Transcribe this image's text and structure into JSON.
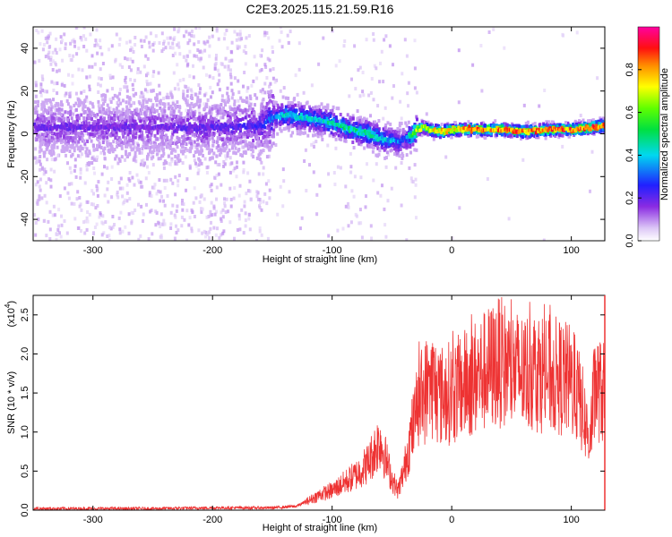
{
  "title": "C2E3.2025.115.21.59.R16",
  "colors": {
    "snr_line": "#ee3333",
    "axis": "#000000"
  },
  "chart_data": [
    {
      "type": "heatmap",
      "xlabel": "Height of straight line (km)",
      "ylabel": "Frequency (Hz)",
      "xlim": [
        -350,
        128
      ],
      "ylim": [
        -50,
        50
      ],
      "x_ticks": [
        -300,
        -200,
        -100,
        0,
        100
      ],
      "x_tick_labels": [
        "-300",
        "-200",
        "-100",
        "0",
        "100"
      ],
      "y_ticks": [
        -40,
        -20,
        0,
        20,
        40
      ],
      "y_tick_labels": [
        "-40",
        "-20",
        "0",
        "20",
        "40"
      ],
      "colorbar": {
        "label": "Normalized spectral amplitude",
        "range": [
          0,
          1
        ],
        "ticks": [
          0.0,
          0.2,
          0.4,
          0.6,
          0.8
        ],
        "tick_labels": [
          "0.0",
          "0.2",
          "0.4",
          "0.6",
          "0.8"
        ],
        "colormap": "rainbow (white → violet → blue → cyan → green → yellow → orange → red → magenta)"
      },
      "ridge": {
        "x": [
          -350,
          -300,
          -250,
          -200,
          -160,
          -150,
          -140,
          -130,
          -120,
          -110,
          -100,
          -90,
          -80,
          -70,
          -60,
          -50,
          -45,
          -40,
          -35,
          -30,
          -25,
          -20,
          -10,
          0,
          10,
          20,
          40,
          60,
          80,
          100,
          115,
          128
        ],
        "freq": [
          3,
          3,
          3,
          3,
          4,
          8,
          9,
          8,
          7,
          6,
          5,
          3,
          1,
          0,
          -2,
          -3,
          -4,
          -2,
          -1,
          2,
          3,
          2,
          1,
          2,
          2,
          2,
          2,
          1,
          2,
          2,
          3,
          4
        ],
        "amplitude": [
          0.2,
          0.2,
          0.2,
          0.22,
          0.25,
          0.35,
          0.45,
          0.45,
          0.45,
          0.45,
          0.5,
          0.5,
          0.5,
          0.5,
          0.45,
          0.4,
          0.35,
          0.3,
          0.6,
          0.7,
          0.7,
          0.75,
          0.85,
          0.85,
          0.88,
          0.9,
          0.9,
          0.9,
          0.9,
          0.9,
          0.9,
          0.9
        ]
      }
    },
    {
      "type": "line",
      "xlabel": "Height of straight line (km)",
      "ylabel": "SNR (10 * v/v)",
      "y_scale_label": "(x10",
      "y_scale_exp": "4",
      "y_scale_suffix": ")",
      "xlim": [
        -350,
        128
      ],
      "ylim": [
        0,
        2.75
      ],
      "x_ticks": [
        -300,
        -200,
        -100,
        0,
        100
      ],
      "x_tick_labels": [
        "-300",
        "-200",
        "-100",
        "0",
        "100"
      ],
      "y_ticks": [
        0,
        0.5,
        1.0,
        1.5,
        2.0,
        2.5
      ],
      "y_tick_labels": [
        "0.0",
        "0.5",
        "1.0",
        "1.5",
        "2.0",
        "2.5"
      ],
      "series": [
        {
          "x": [
            -350,
            -300,
            -250,
            -200,
            -150,
            -130,
            -120,
            -110,
            -100,
            -90,
            -80,
            -70,
            -65,
            -60,
            -55,
            -50,
            -45,
            -40,
            -35,
            -30,
            -25,
            -20,
            -15,
            -10,
            -5,
            0,
            10,
            20,
            30,
            40,
            50,
            60,
            70,
            80,
            90,
            100,
            105,
            110,
            115,
            120,
            125,
            128
          ],
          "y": [
            0.02,
            0.02,
            0.02,
            0.03,
            0.03,
            0.05,
            0.12,
            0.2,
            0.25,
            0.35,
            0.45,
            0.6,
            0.75,
            0.9,
            0.65,
            0.4,
            0.25,
            0.5,
            0.9,
            1.2,
            1.4,
            1.6,
            1.6,
            1.45,
            1.5,
            1.5,
            1.6,
            1.7,
            1.8,
            1.9,
            1.8,
            1.75,
            1.8,
            1.75,
            1.7,
            1.65,
            1.5,
            1.25,
            0.9,
            1.6,
            1.5,
            1.5
          ]
        }
      ]
    }
  ]
}
